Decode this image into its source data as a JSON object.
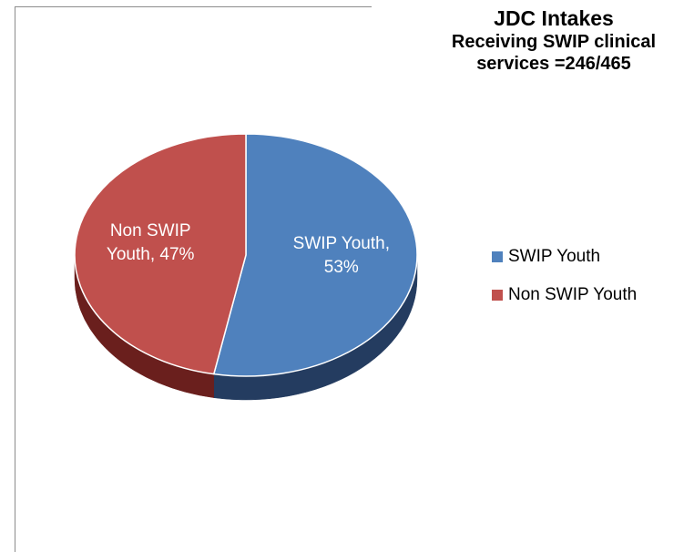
{
  "title": {
    "line1": "JDC Intakes",
    "line2": "Receiving SWIP clinical",
    "line3": "services =246/465"
  },
  "chart_data": {
    "type": "pie",
    "title": "JDC Intakes Receiving SWIP clinical services =246/465",
    "slices": [
      {
        "label": "SWIP Youth",
        "value": 53,
        "data_label_line1": "SWIP Youth,",
        "data_label_line2": "53%",
        "color": "#4f81bd",
        "side_color": "#243c60"
      },
      {
        "label": "Non SWIP Youth",
        "value": 47,
        "data_label_line1": "Non SWIP",
        "data_label_line2": "Youth, 47%",
        "color": "#c0504d",
        "side_color": "#6a1f1d"
      }
    ],
    "legend": {
      "placement": "right",
      "entries": [
        "SWIP Youth",
        "Non SWIP Youth"
      ]
    },
    "style": "3d"
  }
}
